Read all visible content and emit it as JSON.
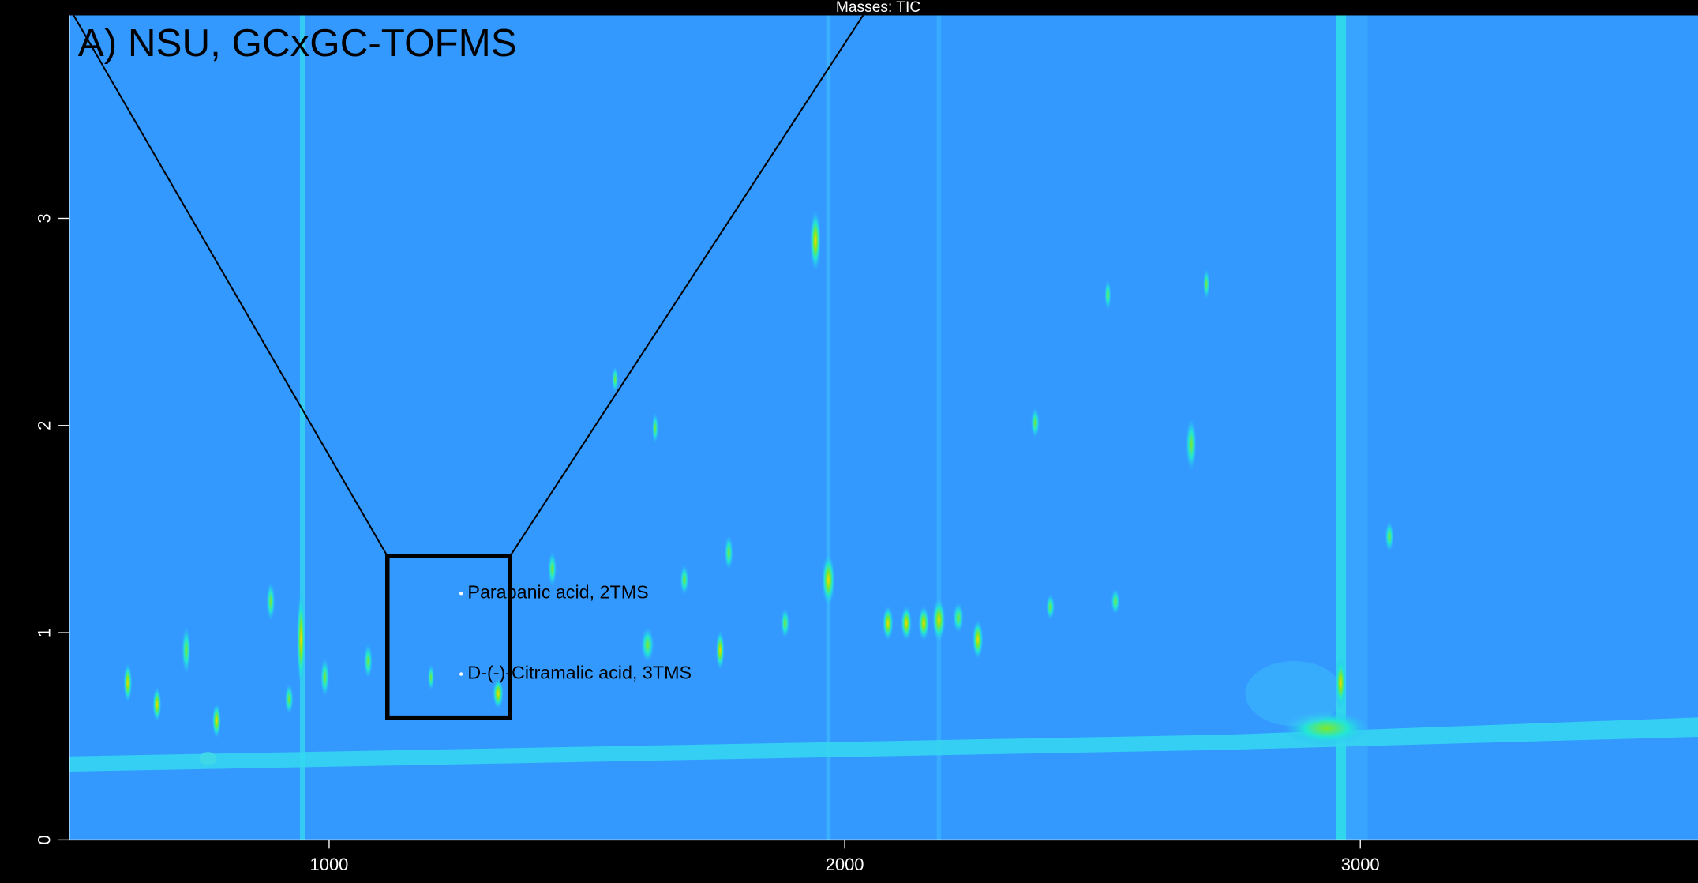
{
  "chart_data": {
    "type": "contour",
    "header": "Masses:  TIC",
    "title": "A) NSU, GCxGC-TOFMS",
    "xlim": [
      496,
      3655
    ],
    "ylim": [
      0,
      3.98
    ],
    "xticks": [
      1000,
      2000,
      3000
    ],
    "yticks": [
      0,
      1,
      2,
      3
    ],
    "background": "#3399ff",
    "zoom_box": {
      "xlim": [
        1113,
        1351
      ],
      "ylim": [
        0.59,
        1.37
      ]
    },
    "annotations": [
      {
        "text": "Parabanic acid, 2TMS",
        "x": 1256,
        "y": 1.19
      },
      {
        "text": "D-(-)-Citramalic acid, 3TMS",
        "x": 1256,
        "y": 0.8
      }
    ]
  }
}
